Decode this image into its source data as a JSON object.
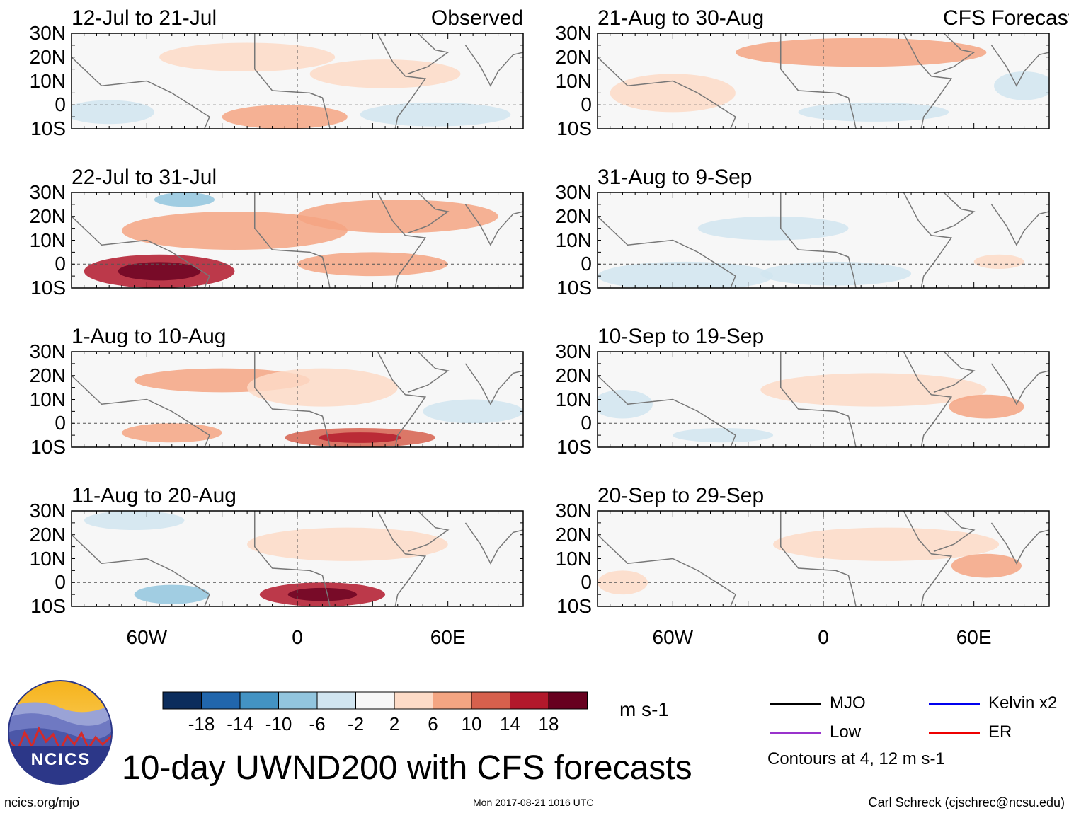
{
  "title": "10-day UWND200 with CFS forecasts",
  "footer": {
    "left": "ncics.org/mjo",
    "center": "Mon 2017-08-21 1016 UTC",
    "right": "Carl Schreck (cjschrec@ncsu.edu)"
  },
  "logo": {
    "text": "NCICS"
  },
  "colorbar": {
    "unit": "m s-1",
    "ticks": [
      "-18",
      "-14",
      "-10",
      "-6",
      "-2",
      "2",
      "6",
      "10",
      "14",
      "18"
    ],
    "colors": [
      "#0b2c5c",
      "#2166ac",
      "#4393c3",
      "#92c5de",
      "#d1e5f0",
      "#f7f7f7",
      "#fddbc7",
      "#f4a582",
      "#d6604d",
      "#b2182b",
      "#67001f"
    ]
  },
  "legend": {
    "items": [
      {
        "label": "MJO",
        "color": "#000000"
      },
      {
        "label": "Kelvin x2",
        "color": "#0000ee"
      },
      {
        "label": "Low",
        "color": "#9933cc"
      },
      {
        "label": "ER",
        "color": "#ee0000"
      }
    ],
    "note": "Contours at 4, 12 m s-1"
  },
  "axes": {
    "lat_labels": [
      "30N",
      "20N",
      "10N",
      "0",
      "10S"
    ],
    "lat_values": [
      30,
      20,
      10,
      0,
      -10
    ],
    "lon_labels": [
      "60W",
      "0",
      "60E"
    ],
    "lon_values": [
      -60,
      0,
      60
    ],
    "lon_range": [
      -90,
      90
    ],
    "lat_range": [
      -10,
      30
    ]
  },
  "chart_data": {
    "type": "heatmap",
    "variable": "200-hPa zonal wind anomaly (10-day mean)",
    "units": "m s-1",
    "panels": [
      {
        "title": "12-Jul to 21-Jul",
        "tag": "Observed",
        "blobs": [
          {
            "lon": -20,
            "lat": 20,
            "rx": 35,
            "ry": 6,
            "value": 4
          },
          {
            "lon": -5,
            "lat": -5,
            "rx": 25,
            "ry": 5,
            "value": 8
          },
          {
            "lon": 35,
            "lat": 13,
            "rx": 30,
            "ry": 6,
            "value": 4
          },
          {
            "lon": 55,
            "lat": -4,
            "rx": 30,
            "ry": 5,
            "value": -6
          },
          {
            "lon": -75,
            "lat": -3,
            "rx": 18,
            "ry": 5,
            "value": -4
          }
        ]
      },
      {
        "title": "21-Aug to 30-Aug",
        "tag": "CFS Forecast",
        "blobs": [
          {
            "lon": 15,
            "lat": 22,
            "rx": 50,
            "ry": 6,
            "value": 8
          },
          {
            "lon": -60,
            "lat": 5,
            "rx": 25,
            "ry": 8,
            "value": 5
          },
          {
            "lon": 20,
            "lat": -3,
            "rx": 30,
            "ry": 4,
            "value": -4
          },
          {
            "lon": 80,
            "lat": 8,
            "rx": 12,
            "ry": 6,
            "value": -4
          }
        ]
      },
      {
        "title": "22-Jul to 31-Jul",
        "tag": "",
        "blobs": [
          {
            "lon": -55,
            "lat": -3,
            "rx": 30,
            "ry": 7,
            "value": 16
          },
          {
            "lon": -25,
            "lat": 14,
            "rx": 45,
            "ry": 8,
            "value": 6
          },
          {
            "lon": 40,
            "lat": 20,
            "rx": 40,
            "ry": 7,
            "value": 6
          },
          {
            "lon": -45,
            "lat": 27,
            "rx": 12,
            "ry": 3,
            "value": -8
          },
          {
            "lon": 30,
            "lat": 0,
            "rx": 30,
            "ry": 5,
            "value": 6
          }
        ]
      },
      {
        "title": "31-Aug to 9-Sep",
        "tag": "",
        "blobs": [
          {
            "lon": -55,
            "lat": -5,
            "rx": 35,
            "ry": 6,
            "value": -6
          },
          {
            "lon": 5,
            "lat": -4,
            "rx": 30,
            "ry": 5,
            "value": -5
          },
          {
            "lon": -20,
            "lat": 15,
            "rx": 30,
            "ry": 5,
            "value": -3
          },
          {
            "lon": 70,
            "lat": 1,
            "rx": 10,
            "ry": 3,
            "value": 4
          }
        ]
      },
      {
        "title": "1-Aug to 10-Aug",
        "tag": "",
        "blobs": [
          {
            "lon": -30,
            "lat": 18,
            "rx": 35,
            "ry": 5,
            "value": 6
          },
          {
            "lon": 25,
            "lat": -6,
            "rx": 30,
            "ry": 4,
            "value": 10
          },
          {
            "lon": 10,
            "lat": 15,
            "rx": 30,
            "ry": 8,
            "value": 5
          },
          {
            "lon": -50,
            "lat": -4,
            "rx": 20,
            "ry": 4,
            "value": 6
          },
          {
            "lon": 70,
            "lat": 5,
            "rx": 20,
            "ry": 5,
            "value": -3
          }
        ]
      },
      {
        "title": "10-Sep to 19-Sep",
        "tag": "",
        "blobs": [
          {
            "lon": 20,
            "lat": 14,
            "rx": 45,
            "ry": 7,
            "value": 4
          },
          {
            "lon": 65,
            "lat": 7,
            "rx": 15,
            "ry": 5,
            "value": 7
          },
          {
            "lon": -80,
            "lat": 8,
            "rx": 12,
            "ry": 6,
            "value": -4
          },
          {
            "lon": -40,
            "lat": -5,
            "rx": 20,
            "ry": 3,
            "value": -5
          }
        ]
      },
      {
        "title": "11-Aug to 20-Aug",
        "tag": "",
        "blobs": [
          {
            "lon": 10,
            "lat": -5,
            "rx": 25,
            "ry": 5,
            "value": 14
          },
          {
            "lon": -50,
            "lat": -5,
            "rx": 15,
            "ry": 4,
            "value": -8
          },
          {
            "lon": 20,
            "lat": 16,
            "rx": 40,
            "ry": 7,
            "value": 4
          },
          {
            "lon": -65,
            "lat": 26,
            "rx": 20,
            "ry": 4,
            "value": -4
          }
        ]
      },
      {
        "title": "20-Sep to 29-Sep",
        "tag": "",
        "blobs": [
          {
            "lon": 25,
            "lat": 16,
            "rx": 45,
            "ry": 7,
            "value": 4
          },
          {
            "lon": 65,
            "lat": 7,
            "rx": 14,
            "ry": 5,
            "value": 7
          },
          {
            "lon": -80,
            "lat": 0,
            "rx": 10,
            "ry": 5,
            "value": 4
          }
        ]
      }
    ]
  }
}
